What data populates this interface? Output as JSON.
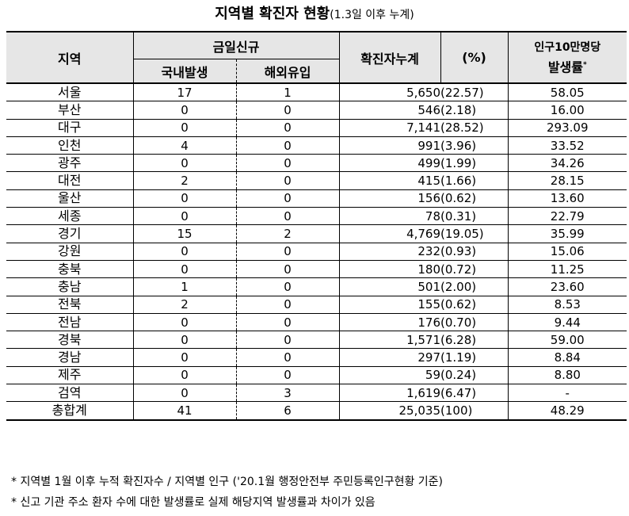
{
  "title": {
    "main": "지역별 확진자 현황",
    "sub": "(1.3일 이후 누계)"
  },
  "header": {
    "region": "지역",
    "today_new": "금일신규",
    "domestic": "국내발생",
    "imported": "해외유입",
    "cumulative": "확진자누계",
    "percent": "(%)",
    "rate_line1": "인구10만명당",
    "rate_line2": "발생률",
    "rate_mark": "*"
  },
  "rows": [
    {
      "region": "서울",
      "domestic": "17",
      "imported": "1",
      "cumulative": "5,650",
      "percent": "(22.57)",
      "rate": "58.05"
    },
    {
      "region": "부산",
      "domestic": "0",
      "imported": "0",
      "cumulative": "546",
      "percent": "(2.18)",
      "rate": "16.00"
    },
    {
      "region": "대구",
      "domestic": "0",
      "imported": "0",
      "cumulative": "7,141",
      "percent": "(28.52)",
      "rate": "293.09"
    },
    {
      "region": "인천",
      "domestic": "4",
      "imported": "0",
      "cumulative": "991",
      "percent": "(3.96)",
      "rate": "33.52"
    },
    {
      "region": "광주",
      "domestic": "0",
      "imported": "0",
      "cumulative": "499",
      "percent": "(1.99)",
      "rate": "34.26"
    },
    {
      "region": "대전",
      "domestic": "2",
      "imported": "0",
      "cumulative": "415",
      "percent": "(1.66)",
      "rate": "28.15"
    },
    {
      "region": "울산",
      "domestic": "0",
      "imported": "0",
      "cumulative": "156",
      "percent": "(0.62)",
      "rate": "13.60"
    },
    {
      "region": "세종",
      "domestic": "0",
      "imported": "0",
      "cumulative": "78",
      "percent": "(0.31)",
      "rate": "22.79"
    },
    {
      "region": "경기",
      "domestic": "15",
      "imported": "2",
      "cumulative": "4,769",
      "percent": "(19.05)",
      "rate": "35.99"
    },
    {
      "region": "강원",
      "domestic": "0",
      "imported": "0",
      "cumulative": "232",
      "percent": "(0.93)",
      "rate": "15.06"
    },
    {
      "region": "충북",
      "domestic": "0",
      "imported": "0",
      "cumulative": "180",
      "percent": "(0.72)",
      "rate": "11.25"
    },
    {
      "region": "충남",
      "domestic": "1",
      "imported": "0",
      "cumulative": "501",
      "percent": "(2.00)",
      "rate": "23.60"
    },
    {
      "region": "전북",
      "domestic": "2",
      "imported": "0",
      "cumulative": "155",
      "percent": "(0.62)",
      "rate": "8.53"
    },
    {
      "region": "전남",
      "domestic": "0",
      "imported": "0",
      "cumulative": "176",
      "percent": "(0.70)",
      "rate": "9.44"
    },
    {
      "region": "경북",
      "domestic": "0",
      "imported": "0",
      "cumulative": "1,571",
      "percent": "(6.28)",
      "rate": "59.00"
    },
    {
      "region": "경남",
      "domestic": "0",
      "imported": "0",
      "cumulative": "297",
      "percent": "(1.19)",
      "rate": "8.84"
    },
    {
      "region": "제주",
      "domestic": "0",
      "imported": "0",
      "cumulative": "59",
      "percent": "(0.24)",
      "rate": "8.80"
    },
    {
      "region": "검역",
      "domestic": "0",
      "imported": "3",
      "cumulative": "1,619",
      "percent": "(6.47)",
      "rate": "-"
    },
    {
      "region": "총합계",
      "domestic": "41",
      "imported": "6",
      "cumulative": "25,035",
      "percent": "(100)",
      "rate": "48.29"
    }
  ],
  "notes": [
    "* 지역별 1월 이후 누적 확진자수 / 지역별 인구 ('20.1월 행정안전부 주민등록인구현황 기준)",
    "* 신고 기관 주소 환자 수에 대한 발생률로 실제 해당지역 발생률과 차이가 있음"
  ]
}
